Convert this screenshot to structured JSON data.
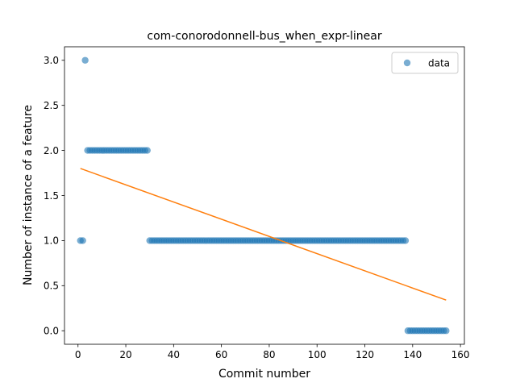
{
  "chart_data": {
    "type": "scatter",
    "title": "com-conorodonnell-bus_when_expr-linear",
    "xlabel": "Commit number",
    "ylabel": "Number of instance of a feature",
    "xlim": [
      -5.65,
      161.65
    ],
    "ylim": [
      -0.15,
      3.15
    ],
    "xticks": [
      0,
      20,
      40,
      60,
      80,
      100,
      120,
      140,
      160
    ],
    "yticks": [
      0.0,
      0.5,
      1.0,
      1.5,
      2.0,
      2.5,
      3.0
    ],
    "xtick_labels": [
      "0",
      "20",
      "40",
      "60",
      "80",
      "100",
      "120",
      "140",
      "160"
    ],
    "ytick_labels": [
      "0.0",
      "0.5",
      "1.0",
      "1.5",
      "2.0",
      "2.5",
      "3.0"
    ],
    "legend": {
      "position": "top-right",
      "entries": [
        "data"
      ]
    },
    "grid": false,
    "colors": {
      "scatter": "#1f77b4",
      "line": "#ff7f0e"
    },
    "series": [
      {
        "name": "data",
        "kind": "scatter",
        "segments": [
          {
            "x_from": 1,
            "x_to": 2,
            "y": 1
          },
          {
            "x_from": 3,
            "x_to": 3,
            "y": 3
          },
          {
            "x_from": 4,
            "x_to": 29,
            "y": 2
          },
          {
            "x_from": 30,
            "x_to": 137,
            "y": 1
          },
          {
            "x_from": 138,
            "x_to": 154,
            "y": 0
          }
        ]
      },
      {
        "kind": "line",
        "x": [
          1,
          154
        ],
        "y": [
          1.8,
          0.34
        ]
      }
    ]
  }
}
